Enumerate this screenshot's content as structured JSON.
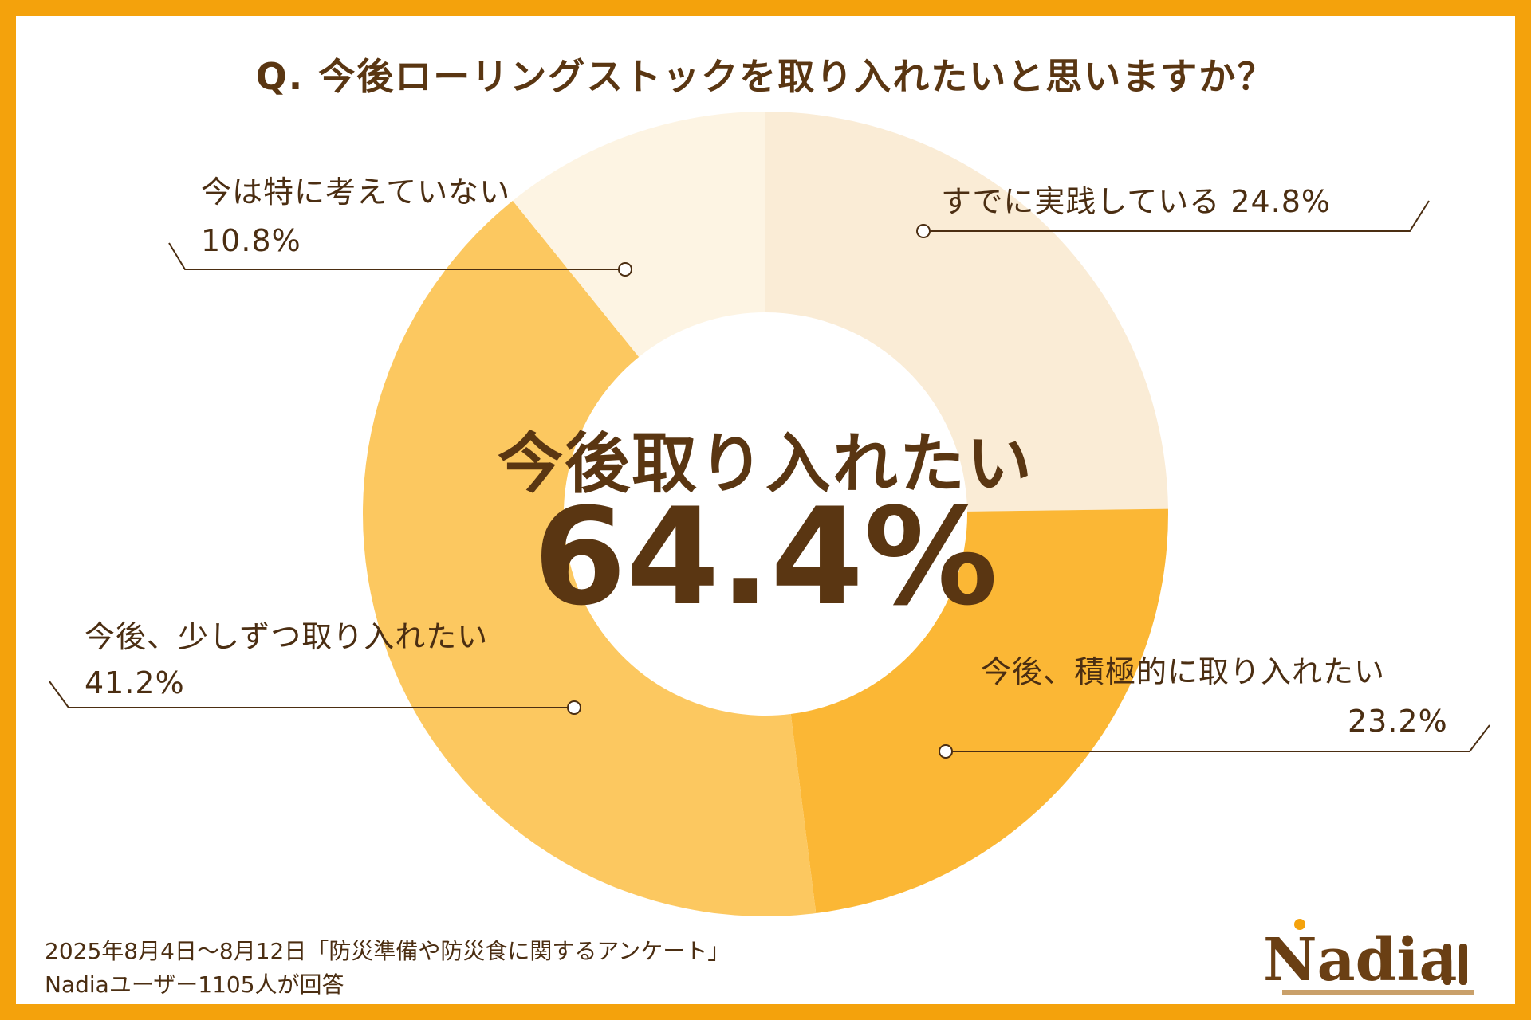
{
  "title": "Q. 今後ローリングストックを取り入れたいと思いますか？",
  "center": {
    "label": "今後取り入れたい",
    "value": "64.4%"
  },
  "labels": {
    "practicing": "すでに実践している  24.8%",
    "active_line1": "今後、積極的に取り入れたい",
    "active_line2": "23.2%",
    "gradual_line1": "今後、少しずつ取り入れたい",
    "gradual_line2": "41.2%",
    "none_line1": "今は特に考えていない",
    "none_line2": "10.8%"
  },
  "footer": {
    "line1": "2025年8月4日～8月12日「防災準備や防災食に関するアンケート」",
    "line2": "Nadiaユーザー1105人が回答"
  },
  "logo": "Nadia",
  "chart_data": {
    "type": "pie",
    "title": "Q. 今後ローリングストックを取り入れたいと思いますか？",
    "categories": [
      "すでに実践している",
      "今後、積極的に取り入れたい",
      "今後、少しずつ取り入れたい",
      "今は特に考えていない"
    ],
    "values": [
      24.8,
      23.2,
      41.2,
      10.8
    ],
    "unit": "%",
    "colors": [
      "#faecd6",
      "#fbb735",
      "#fcc860",
      "#fdf4e3"
    ],
    "frame_color": "#f4a20c",
    "text_color": "#4b2e12",
    "style": "donut"
  }
}
